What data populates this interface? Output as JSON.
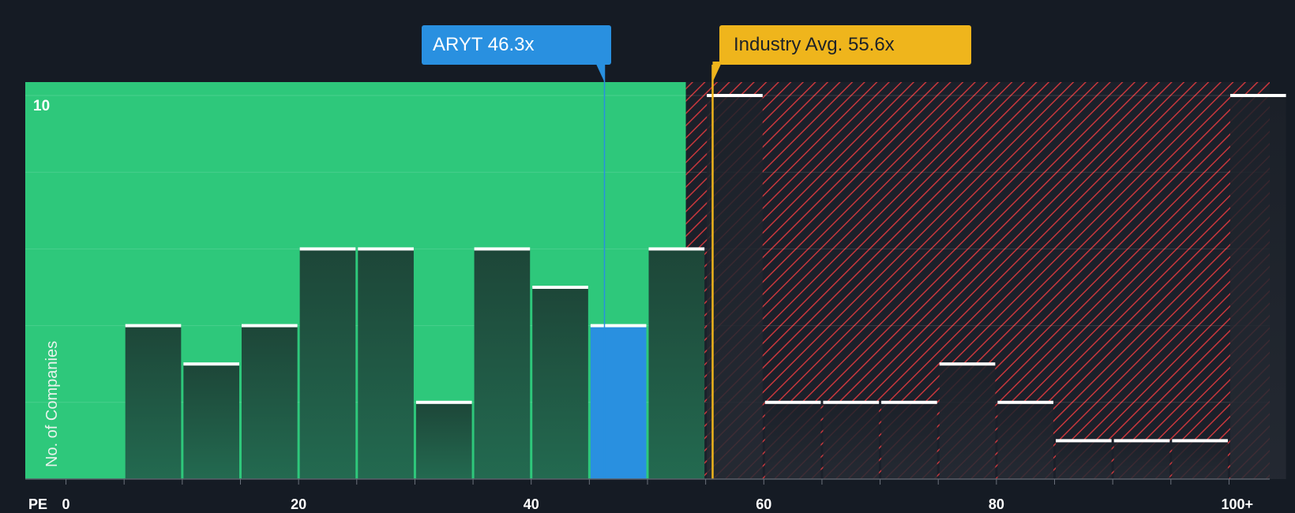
{
  "chart_data": {
    "type": "bar",
    "xlabel": "PE",
    "ylabel": "No. of Companies",
    "x_ticks": [
      "0",
      "20",
      "40",
      "60",
      "80",
      "100+"
    ],
    "x_tick_values": [
      0,
      20,
      40,
      60,
      80,
      100
    ],
    "y_ticks": [
      "10"
    ],
    "y_tick_values": [
      10
    ],
    "xlim": [
      -3.5,
      103.5
    ],
    "ylim": [
      0,
      10.35
    ],
    "grid": true,
    "bin_width": 5,
    "bins": [
      {
        "start": 5,
        "count": 4
      },
      {
        "start": 10,
        "count": 3
      },
      {
        "start": 15,
        "count": 4
      },
      {
        "start": 20,
        "count": 6
      },
      {
        "start": 25,
        "count": 6
      },
      {
        "start": 30,
        "count": 2
      },
      {
        "start": 35,
        "count": 6
      },
      {
        "start": 40,
        "count": 5
      },
      {
        "start": 45,
        "count": 4
      },
      {
        "start": 50,
        "count": 6
      },
      {
        "start": 55,
        "count": 10
      },
      {
        "start": 60,
        "count": 2
      },
      {
        "start": 65,
        "count": 2
      },
      {
        "start": 70,
        "count": 2
      },
      {
        "start": 75,
        "count": 3
      },
      {
        "start": 80,
        "count": 2
      },
      {
        "start": 85,
        "count": 1
      },
      {
        "start": 90,
        "count": 1
      },
      {
        "start": 95,
        "count": 1
      },
      {
        "start": 100,
        "count": 10
      }
    ],
    "highlight_bin_start": 45,
    "company": {
      "ticker": "ARYT",
      "pe": 46.3,
      "label": "ARYT 46.3x"
    },
    "industry": {
      "pe": 55.6,
      "label": "Industry Avg. 55.6x"
    },
    "colors": {
      "background": "#151b24",
      "fair_zone": "#2ec87b",
      "bar_dark": "#1f4f3e",
      "highlight_bar": "#2990e0",
      "overvalued_stripe": "#c8373c",
      "company_marker": "#2990e0",
      "industry_marker": "#efb51c"
    }
  }
}
